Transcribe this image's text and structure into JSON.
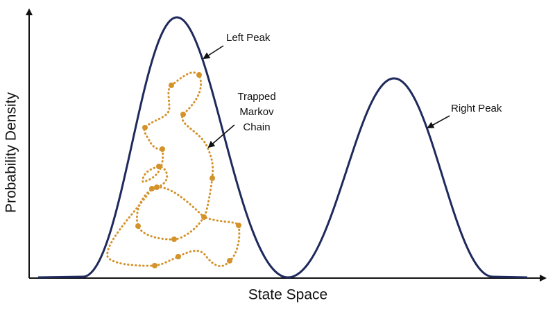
{
  "axes": {
    "x_label": "State Space",
    "y_label": "Probability Density"
  },
  "annotations": {
    "left_peak": "Left Peak",
    "chain": [
      "Trapped",
      "Markov",
      "Chain"
    ],
    "right_peak": "Right Peak"
  }
}
